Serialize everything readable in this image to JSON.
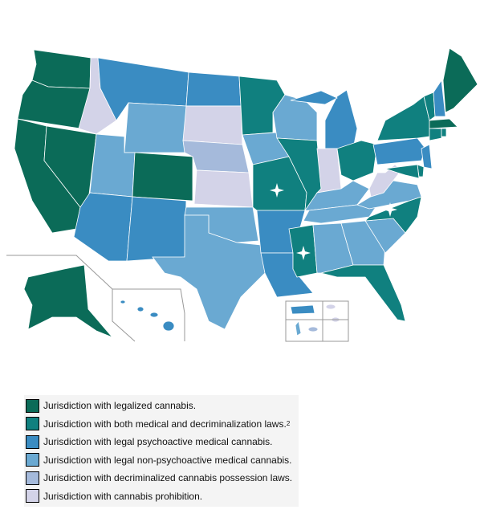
{
  "legend": [
    {
      "label": "Jurisdiction with legalized cannabis.",
      "color": "#0b6b58"
    },
    {
      "label": "Jurisdiction with both medical and decriminalization laws.",
      "note": "2",
      "color": "#10807f"
    },
    {
      "label": "Jurisdiction with legal psychoactive medical cannabis.",
      "color": "#3a8cc2"
    },
    {
      "label": "Jurisdiction with legal non-psychoactive medical cannabis.",
      "color": "#6aa9d2"
    },
    {
      "label": "Jurisdiction with decriminalized cannabis possession laws.",
      "color": "#a5badb"
    },
    {
      "label": "Jurisdiction with cannabis prohibition.",
      "color": "#d3d3e8"
    }
  ]
}
